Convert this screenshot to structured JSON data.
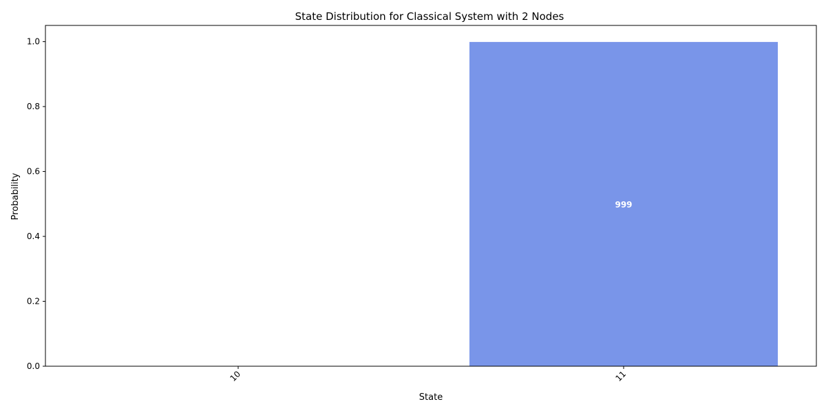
{
  "chart_data": {
    "type": "bar",
    "title": "State Distribution for Classical System with 2 Nodes",
    "xlabel": "State",
    "ylabel": "Probability",
    "categories": [
      "10",
      "11"
    ],
    "values": [
      0.001,
      0.999
    ],
    "data_labels": [
      "",
      "999"
    ],
    "ylim": [
      0,
      1.05
    ],
    "yticks": [
      0.0,
      0.2,
      0.4,
      0.6,
      0.8,
      1.0
    ],
    "ytick_labels": [
      "0.0",
      "0.2",
      "0.4",
      "0.6",
      "0.8",
      "1.0"
    ],
    "grid": false,
    "legend": "none",
    "bar_color": "#7995e9",
    "data_label_color": "#ffffff"
  }
}
